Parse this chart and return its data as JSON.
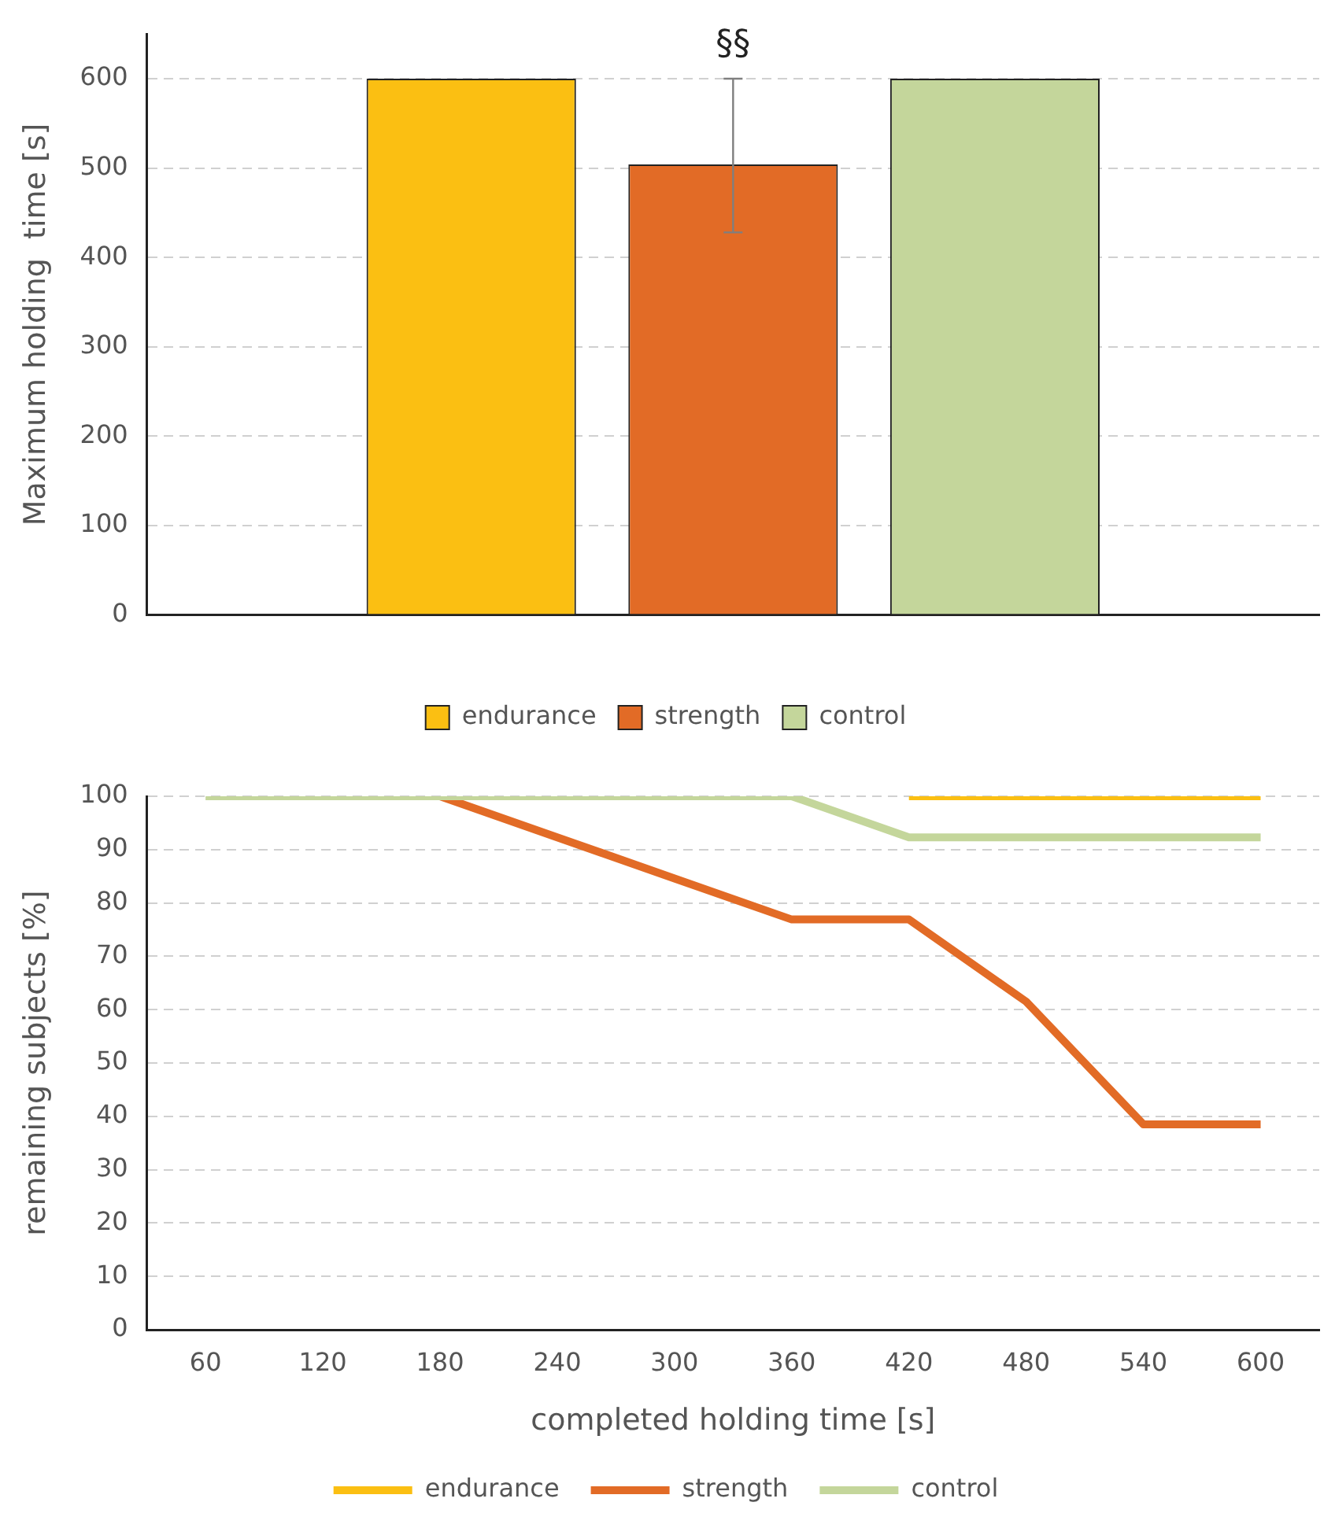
{
  "chart_data": [
    {
      "type": "bar",
      "ylabel": "Maximum holding  time [s]",
      "categories": [
        null
      ],
      "series": [
        {
          "name": "endurance",
          "color": "#fbbf12",
          "values": [
            600
          ]
        },
        {
          "name": "strength",
          "color": "#e26b26",
          "values": [
            504
          ],
          "errors": [
            [
              428,
              600
            ]
          ]
        },
        {
          "name": "control",
          "color": "#c4d69b",
          "values": [
            600
          ]
        }
      ],
      "ylim": [
        0,
        650
      ],
      "yticks": [
        0,
        100,
        200,
        300,
        400,
        500,
        600
      ],
      "grid": "y",
      "legend": "bottom",
      "annotations": [
        "§§"
      ]
    },
    {
      "type": "line",
      "xlabel": "completed holding time [s]",
      "ylabel": "remaining subjects [%]",
      "categories": [
        "60",
        "120",
        "180",
        "240",
        "300",
        "360",
        "420",
        "480",
        "540",
        "600"
      ],
      "series": [
        {
          "name": "endurance",
          "color": "#fbbf12",
          "values": [
            null,
            null,
            null,
            null,
            null,
            null,
            100,
            100,
            100,
            100
          ]
        },
        {
          "name": "strength",
          "color": "#e26b26",
          "values": [
            null,
            null,
            100,
            92.3,
            84.6,
            76.9,
            76.9,
            61.5,
            38.5,
            38.5
          ]
        },
        {
          "name": "control",
          "color": "#c4d69b",
          "values": [
            100,
            100,
            100,
            100,
            100,
            100,
            92.3,
            92.3,
            92.3,
            92.3
          ]
        }
      ],
      "ylim": [
        0,
        100
      ],
      "yticks": [
        0,
        10,
        20,
        30,
        40,
        50,
        60,
        70,
        80,
        90,
        100
      ],
      "grid": "y",
      "legend": "bottom"
    }
  ]
}
